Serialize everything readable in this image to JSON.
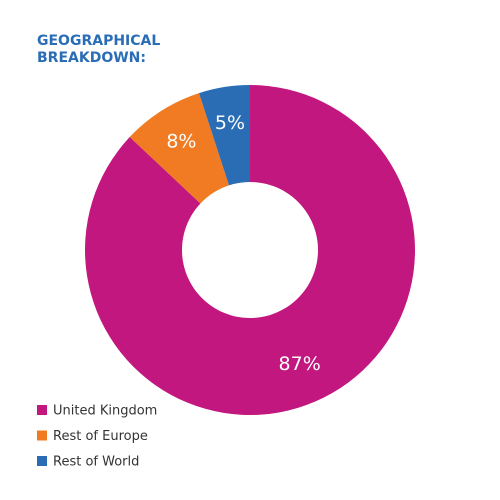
{
  "chart_data": {
    "type": "donut",
    "title": "GEOGRAPHICAL BREAKDOWN:",
    "categories": [
      "United Kingdom",
      "Rest of Europe",
      "Rest of World"
    ],
    "values": [
      87,
      8,
      5
    ],
    "value_labels": [
      "87%",
      "8%",
      "5%"
    ],
    "colors": [
      "#c2177f",
      "#f07b22",
      "#2a6db5"
    ],
    "legend": "bottom-left"
  }
}
